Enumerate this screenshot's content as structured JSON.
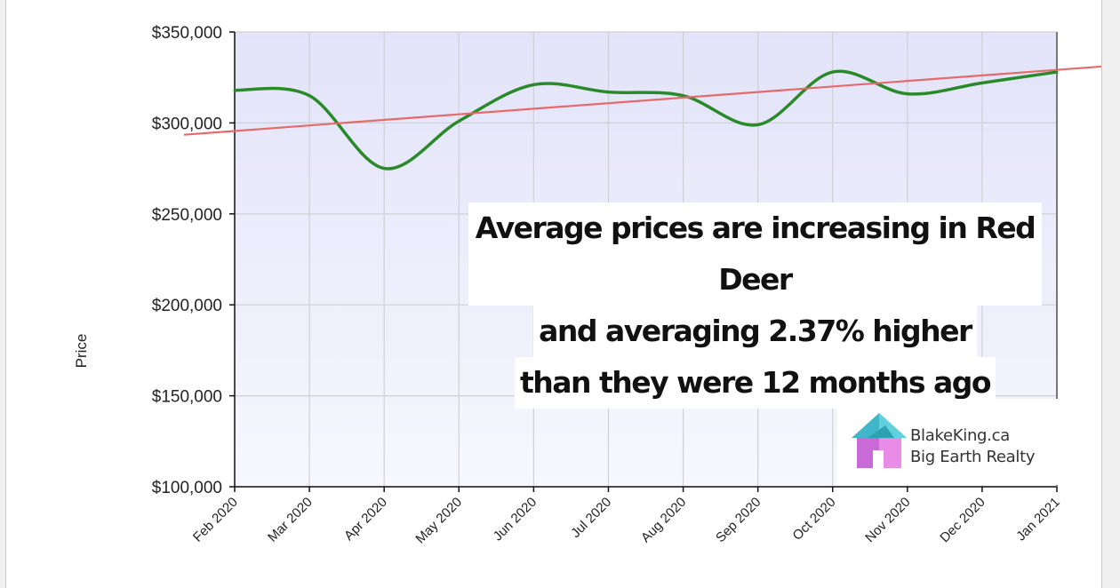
{
  "chart_data": {
    "type": "line",
    "title": "",
    "xlabel": "",
    "ylabel": "Price",
    "ylim": [
      100000,
      350000
    ],
    "yticks": [
      "$350,000",
      "$300,000",
      "$250,000",
      "$200,000",
      "$150,000",
      "$100,000"
    ],
    "ytick_values": [
      350000,
      300000,
      250000,
      200000,
      150000,
      100000
    ],
    "categories": [
      "Feb 2020",
      "Mar 2020",
      "Apr 2020",
      "May 2020",
      "Jun 2020",
      "Jul 2020",
      "Aug 2020",
      "Sep 2020",
      "Oct 2020",
      "Nov 2020",
      "Dec 2020",
      "Jan 2021"
    ],
    "series": [
      {
        "values": [
          318000,
          315000,
          275000,
          301000,
          321000,
          317000,
          315000,
          299000,
          328000,
          316000,
          322000,
          328000
        ],
        "color": "#2a8a2a"
      }
    ],
    "trendline": {
      "color": "#e46b6b",
      "start_value": 293500,
      "end_value": 331000
    },
    "grid": true,
    "plot_background": "#ebebfb"
  },
  "annotation": {
    "lines": [
      "Average prices are increasing in Red Deer",
      "and averaging 2.37% higher",
      "than they were 12 months ago"
    ]
  },
  "logo": {
    "line1": "BlakeKing.ca",
    "line2": "Big Earth Realty",
    "icon": "house-icon"
  }
}
